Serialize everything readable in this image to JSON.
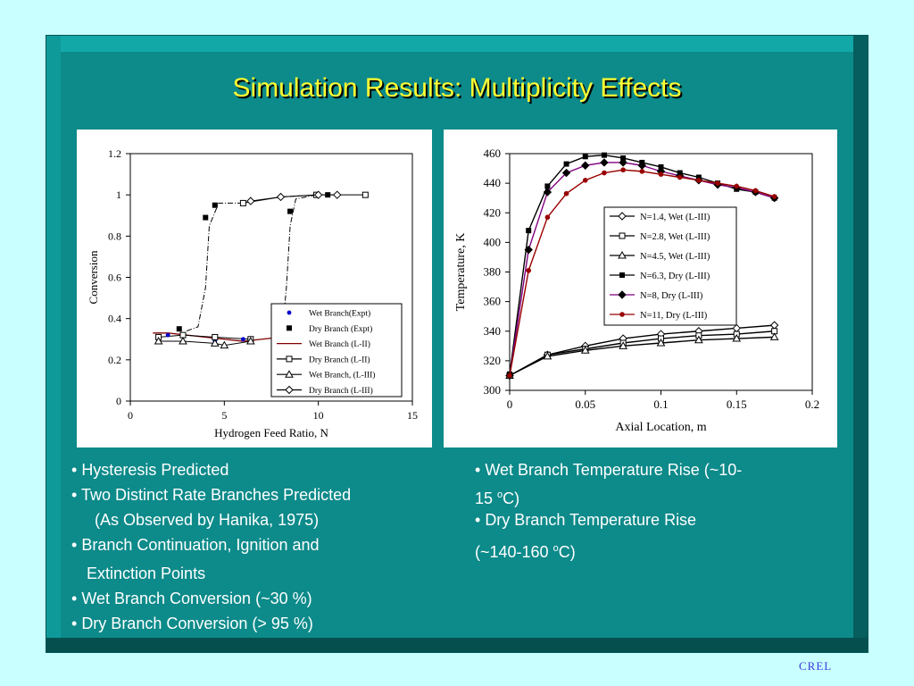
{
  "title": "Simulation Results: Multiplicity Effects",
  "footer": "CREL",
  "left_bullets": [
    {
      "text": "Hysteresis Predicted"
    },
    {
      "text": "Two Distinct Rate Branches Predicted"
    },
    {
      "text": "(As Observed by Hanika, 1975)"
    },
    {
      "text": "Branch Continuation, Ignition and"
    },
    {
      "text": "Extinction Points"
    },
    {
      "text": "Wet Branch Conversion (~30 %)"
    },
    {
      "text": "Dry Branch Conversion (> 95 %)"
    }
  ],
  "right_bullets": {
    "wet_line1": "Wet Branch Temperature Rise (~10-",
    "wet_line2a": "15 ",
    "wet_sup": "o",
    "wet_line2b": "C)",
    "dry_line1": "Dry Branch Temperature Rise",
    "dry_line2a": "(~140-160 ",
    "dry_sup": "o",
    "dry_line2b": "C)"
  },
  "chart_data": [
    {
      "type": "scatter",
      "xlabel": "Hydrogen Feed Ratio, N",
      "ylabel": "Conversion",
      "xlim": [
        0,
        15
      ],
      "ylim": [
        0,
        1.2
      ],
      "xticks": [
        0,
        5,
        10,
        15
      ],
      "yticks": [
        0,
        0.2,
        0.4,
        0.6,
        0.8,
        1,
        1.2
      ],
      "legend_position": "lower-right",
      "series": [
        {
          "name": "Wet Branch(Expt)",
          "marker": "dot",
          "color": "#0000cc",
          "x": [
            2.0,
            4.5,
            6.0
          ],
          "y": [
            0.32,
            0.29,
            0.3
          ]
        },
        {
          "name": "Dry Branch (Expt)",
          "marker": "filled-square",
          "color": "#000000",
          "x": [
            2.6,
            4.0,
            4.5,
            8.5,
            10.5
          ],
          "y": [
            0.35,
            0.89,
            0.95,
            0.92,
            1.0
          ]
        },
        {
          "name": "Wet Branch (L-II)",
          "marker": "none",
          "line": "solid",
          "color": "#800000",
          "x": [
            1.2,
            2.0,
            3.0,
            4.0,
            5.0,
            6.0,
            7.0,
            8.0,
            8.5
          ],
          "y": [
            0.33,
            0.33,
            0.32,
            0.31,
            0.3,
            0.29,
            0.3,
            0.31,
            0.32
          ]
        },
        {
          "name": "Dry Branch (L-II)",
          "marker": "open-square",
          "line": "solid",
          "color": "#000000",
          "x": [
            1.5,
            2.8,
            4.5,
            6.0,
            6.4,
            9.9,
            12.5
          ],
          "y": [
            0.31,
            0.32,
            0.31,
            0.96,
            0.3,
            1.0,
            1.0
          ]
        },
        {
          "name": "Wet Branch, (L-III)",
          "marker": "open-triangle",
          "line": "solid",
          "color": "#000000",
          "x": [
            1.5,
            2.8,
            4.5,
            5.0,
            6.4
          ],
          "y": [
            0.29,
            0.29,
            0.28,
            0.27,
            0.29
          ]
        },
        {
          "name": "Dry Branch (L-III)",
          "marker": "open-diamond",
          "line": "solid",
          "color": "#000000",
          "x": [
            6.4,
            8.0,
            10.0,
            11.0
          ],
          "y": [
            0.97,
            0.99,
            1.0,
            1.0
          ]
        }
      ]
    },
    {
      "type": "line",
      "xlabel": "Axial Location, m",
      "ylabel": "Temperature, K",
      "xlim": [
        0,
        0.2
      ],
      "ylim": [
        300,
        460
      ],
      "xticks": [
        0,
        0.05,
        0.1,
        0.15,
        0.2
      ],
      "yticks": [
        300,
        320,
        340,
        360,
        380,
        400,
        420,
        440,
        460
      ],
      "legend_position": "upper-right",
      "series": [
        {
          "name": "N=1.4, Wet (L-III)",
          "marker": "open-diamond",
          "color": "#000000",
          "x": [
            0,
            0.025,
            0.05,
            0.075,
            0.1,
            0.125,
            0.15,
            0.175
          ],
          "y": [
            310,
            324,
            330,
            335,
            338,
            340,
            342,
            344
          ]
        },
        {
          "name": "N=2.8, Wet (L-III)",
          "marker": "open-square",
          "color": "#000000",
          "x": [
            0,
            0.025,
            0.05,
            0.075,
            0.1,
            0.125,
            0.15,
            0.175
          ],
          "y": [
            310,
            324,
            328,
            332,
            335,
            337,
            338,
            340
          ]
        },
        {
          "name": "N=4.5, Wet (L-III)",
          "marker": "open-triangle",
          "color": "#000000",
          "x": [
            0,
            0.025,
            0.05,
            0.075,
            0.1,
            0.125,
            0.15,
            0.175
          ],
          "y": [
            310,
            323,
            327,
            330,
            332,
            334,
            335,
            336
          ]
        },
        {
          "name": "N=6.3, Dry (L-III)",
          "marker": "filled-square",
          "color": "#000000",
          "x": [
            0,
            0.0125,
            0.025,
            0.0375,
            0.05,
            0.0625,
            0.075,
            0.0875,
            0.1,
            0.1125,
            0.125,
            0.1375,
            0.15,
            0.1625,
            0.175
          ],
          "y": [
            311,
            408,
            438,
            453,
            458,
            459,
            457,
            454,
            451,
            447,
            444,
            440,
            436,
            434,
            430
          ]
        },
        {
          "name": "N=8, Dry (L-III)",
          "marker": "filled-diamond",
          "color": "#800080",
          "x": [
            0,
            0.0125,
            0.025,
            0.0375,
            0.05,
            0.0625,
            0.075,
            0.0875,
            0.1,
            0.1125,
            0.125,
            0.1375,
            0.15,
            0.1625,
            0.175
          ],
          "y": [
            310,
            395,
            434,
            447,
            452,
            454,
            454,
            452,
            448,
            445,
            442,
            439,
            437,
            434,
            430
          ]
        },
        {
          "name": "N=11, Dry (L-III)",
          "marker": "filled-dot",
          "color": "#990000",
          "x": [
            0,
            0.0125,
            0.025,
            0.0375,
            0.05,
            0.0625,
            0.075,
            0.0875,
            0.1,
            0.1125,
            0.125,
            0.1375,
            0.15,
            0.1625,
            0.175
          ],
          "y": [
            310,
            381,
            417,
            433,
            442,
            447,
            449,
            448,
            446,
            444,
            442,
            440,
            438,
            435,
            431
          ]
        }
      ]
    }
  ]
}
